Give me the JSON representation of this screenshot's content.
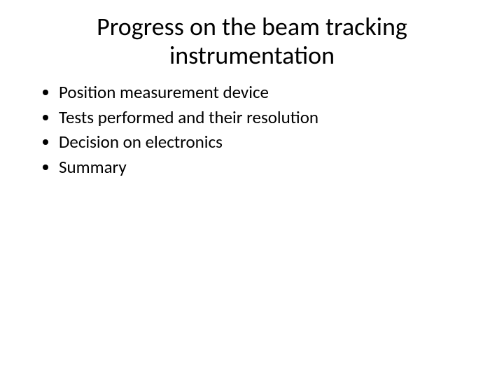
{
  "slide": {
    "background_color": "#ffffff",
    "text_color": "#000000",
    "title": {
      "line1": "Progress on the beam tracking",
      "line2": "instrumentation",
      "fontsize": 36,
      "align": "center"
    },
    "bullets": {
      "items": [
        "Position measurement device",
        "Tests performed and their resolution",
        "Decision on electronics",
        "Summary"
      ],
      "fontsize": 25,
      "marker": "disc"
    }
  }
}
